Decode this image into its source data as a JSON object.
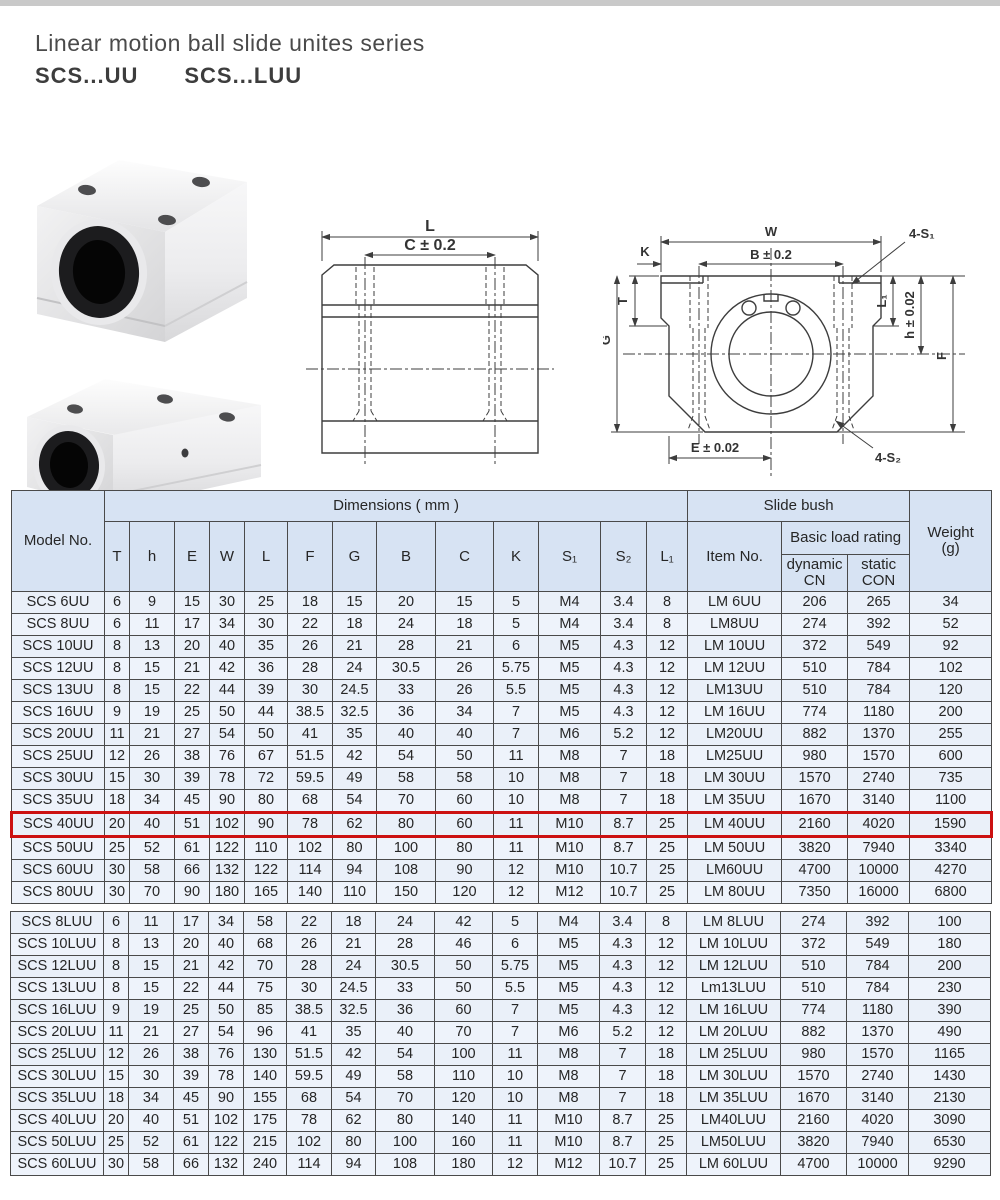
{
  "header": {
    "title": "Linear motion ball  slide unites series",
    "subtitle_left": "SCS...UU",
    "subtitle_right": "SCS...LUU"
  },
  "colors": {
    "table_cell_bg": "#eaf0f9",
    "table_header_bg": "#d7e3f3",
    "grid_line": "#4a4a4a",
    "highlight": "#cc1111"
  },
  "drawings": {
    "side_view": {
      "labels": {
        "L": "L",
        "C": "C ± 0.2"
      }
    },
    "front_view": {
      "labels": {
        "W": "W",
        "B": "B ± 0.2",
        "K": "K",
        "T": "T",
        "G": "G",
        "L1": "L₁",
        "h": "h ± 0.02",
        "F": "F",
        "E": "E ± 0.02",
        "S1": "4-S₁",
        "S2": "4-S₂"
      }
    }
  },
  "table": {
    "header": {
      "model_no": "Model No.",
      "dimensions": "Dimensions ( mm )",
      "slide_bush": "Slide bush",
      "weight": "Weight\n(g)",
      "dim_cols": [
        "T",
        "h",
        "E",
        "W",
        "L",
        "F",
        "G",
        "B",
        "C",
        "K",
        "S₁",
        "S₂",
        "L₁"
      ],
      "item_no": "Item No.",
      "basic_load": "Basic load rating",
      "dynamic": "dynamic\nCN",
      "static": "static\nCON"
    },
    "sections": [
      {
        "name": "UU",
        "rows": [
          {
            "model": "SCS 6UU",
            "dims": [
              "6",
              "9",
              "15",
              "30",
              "25",
              "18",
              "15",
              "20",
              "15",
              "5",
              "M4",
              "3.4",
              "8"
            ],
            "item": "LM 6UU",
            "dynamic": "206",
            "static": "265",
            "weight": "34",
            "highlight": false
          },
          {
            "model": "SCS 8UU",
            "dims": [
              "6",
              "11",
              "17",
              "34",
              "30",
              "22",
              "18",
              "24",
              "18",
              "5",
              "M4",
              "3.4",
              "8"
            ],
            "item": "LM8UU",
            "dynamic": "274",
            "static": "392",
            "weight": "52",
            "highlight": false
          },
          {
            "model": "SCS 10UU",
            "dims": [
              "8",
              "13",
              "20",
              "40",
              "35",
              "26",
              "21",
              "28",
              "21",
              "6",
              "M5",
              "4.3",
              "12"
            ],
            "item": "LM 10UU",
            "dynamic": "372",
            "static": "549",
            "weight": "92",
            "highlight": false
          },
          {
            "model": "SCS 12UU",
            "dims": [
              "8",
              "15",
              "21",
              "42",
              "36",
              "28",
              "24",
              "30.5",
              "26",
              "5.75",
              "M5",
              "4.3",
              "12"
            ],
            "item": "LM 12UU",
            "dynamic": "510",
            "static": "784",
            "weight": "102",
            "highlight": false
          },
          {
            "model": "SCS 13UU",
            "dims": [
              "8",
              "15",
              "22",
              "44",
              "39",
              "30",
              "24.5",
              "33",
              "26",
              "5.5",
              "M5",
              "4.3",
              "12"
            ],
            "item": "LM13UU",
            "dynamic": "510",
            "static": "784",
            "weight": "120",
            "highlight": false
          },
          {
            "model": "SCS 16UU",
            "dims": [
              "9",
              "19",
              "25",
              "50",
              "44",
              "38.5",
              "32.5",
              "36",
              "34",
              "7",
              "M5",
              "4.3",
              "12"
            ],
            "item": "LM 16UU",
            "dynamic": "774",
            "static": "1180",
            "weight": "200",
            "highlight": false
          },
          {
            "model": "SCS 20UU",
            "dims": [
              "11",
              "21",
              "27",
              "54",
              "50",
              "41",
              "35",
              "40",
              "40",
              "7",
              "M6",
              "5.2",
              "12"
            ],
            "item": "LM20UU",
            "dynamic": "882",
            "static": "1370",
            "weight": "255",
            "highlight": false
          },
          {
            "model": "SCS 25UU",
            "dims": [
              "12",
              "26",
              "38",
              "76",
              "67",
              "51.5",
              "42",
              "54",
              "50",
              "11",
              "M8",
              "7",
              "18"
            ],
            "item": "LM25UU",
            "dynamic": "980",
            "static": "1570",
            "weight": "600",
            "highlight": false
          },
          {
            "model": "SCS 30UU",
            "dims": [
              "15",
              "30",
              "39",
              "78",
              "72",
              "59.5",
              "49",
              "58",
              "58",
              "10",
              "M8",
              "7",
              "18"
            ],
            "item": "LM 30UU",
            "dynamic": "1570",
            "static": "2740",
            "weight": "735",
            "highlight": false
          },
          {
            "model": "SCS 35UU",
            "dims": [
              "18",
              "34",
              "45",
              "90",
              "80",
              "68",
              "54",
              "70",
              "60",
              "10",
              "M8",
              "7",
              "18"
            ],
            "item": "LM 35UU",
            "dynamic": "1670",
            "static": "3140",
            "weight": "1100",
            "highlight": false
          },
          {
            "model": "SCS 40UU",
            "dims": [
              "20",
              "40",
              "51",
              "102",
              "90",
              "78",
              "62",
              "80",
              "60",
              "11",
              "M10",
              "8.7",
              "25"
            ],
            "item": "LM 40UU",
            "dynamic": "2160",
            "static": "4020",
            "weight": "1590",
            "highlight": true
          },
          {
            "model": "SCS 50UU",
            "dims": [
              "25",
              "52",
              "61",
              "122",
              "110",
              "102",
              "80",
              "100",
              "80",
              "11",
              "M10",
              "8.7",
              "25"
            ],
            "item": "LM 50UU",
            "dynamic": "3820",
            "static": "7940",
            "weight": "3340",
            "highlight": false
          },
          {
            "model": "SCS 60UU",
            "dims": [
              "30",
              "58",
              "66",
              "132",
              "122",
              "114",
              "94",
              "108",
              "90",
              "12",
              "M10",
              "10.7",
              "25"
            ],
            "item": "LM60UU",
            "dynamic": "4700",
            "static": "10000",
            "weight": "4270",
            "highlight": false
          },
          {
            "model": "SCS 80UU",
            "dims": [
              "30",
              "70",
              "90",
              "180",
              "165",
              "140",
              "110",
              "150",
              "120",
              "12",
              "M12",
              "10.7",
              "25"
            ],
            "item": "LM 80UU",
            "dynamic": "7350",
            "static": "16000",
            "weight": "6800",
            "highlight": false
          }
        ]
      },
      {
        "name": "LUU",
        "rows": [
          {
            "model": "SCS 8LUU",
            "dims": [
              "6",
              "11",
              "17",
              "34",
              "58",
              "22",
              "18",
              "24",
              "42",
              "5",
              "M4",
              "3.4",
              "8"
            ],
            "item": "LM 8LUU",
            "dynamic": "274",
            "static": "392",
            "weight": "100",
            "highlight": false
          },
          {
            "model": "SCS 10LUU",
            "dims": [
              "8",
              "13",
              "20",
              "40",
              "68",
              "26",
              "21",
              "28",
              "46",
              "6",
              "M5",
              "4.3",
              "12"
            ],
            "item": "LM 10LUU",
            "dynamic": "372",
            "static": "549",
            "weight": "180",
            "highlight": false
          },
          {
            "model": "SCS 12LUU",
            "dims": [
              "8",
              "15",
              "21",
              "42",
              "70",
              "28",
              "24",
              "30.5",
              "50",
              "5.75",
              "M5",
              "4.3",
              "12"
            ],
            "item": "LM 12LUU",
            "dynamic": "510",
            "static": "784",
            "weight": "200",
            "highlight": false
          },
          {
            "model": "SCS 13LUU",
            "dims": [
              "8",
              "15",
              "22",
              "44",
              "75",
              "30",
              "24.5",
              "33",
              "50",
              "5.5",
              "M5",
              "4.3",
              "12"
            ],
            "item": "Lm13LUU",
            "dynamic": "510",
            "static": "784",
            "weight": "230",
            "highlight": false
          },
          {
            "model": "SCS 16LUU",
            "dims": [
              "9",
              "19",
              "25",
              "50",
              "85",
              "38.5",
              "32.5",
              "36",
              "60",
              "7",
              "M5",
              "4.3",
              "12"
            ],
            "item": "LM 16LUU",
            "dynamic": "774",
            "static": "1180",
            "weight": "390",
            "highlight": false
          },
          {
            "model": "SCS 20LUU",
            "dims": [
              "11",
              "21",
              "27",
              "54",
              "96",
              "41",
              "35",
              "40",
              "70",
              "7",
              "M6",
              "5.2",
              "12"
            ],
            "item": "LM 20LUU",
            "dynamic": "882",
            "static": "1370",
            "weight": "490",
            "highlight": false
          },
          {
            "model": "SCS 25LUU",
            "dims": [
              "12",
              "26",
              "38",
              "76",
              "130",
              "51.5",
              "42",
              "54",
              "100",
              "11",
              "M8",
              "7",
              "18"
            ],
            "item": "LM 25LUU",
            "dynamic": "980",
            "static": "1570",
            "weight": "1165",
            "highlight": false
          },
          {
            "model": "SCS 30LUU",
            "dims": [
              "15",
              "30",
              "39",
              "78",
              "140",
              "59.5",
              "49",
              "58",
              "110",
              "10",
              "M8",
              "7",
              "18"
            ],
            "item": "LM 30LUU",
            "dynamic": "1570",
            "static": "2740",
            "weight": "1430",
            "highlight": false
          },
          {
            "model": "SCS 35LUU",
            "dims": [
              "18",
              "34",
              "45",
              "90",
              "155",
              "68",
              "54",
              "70",
              "120",
              "10",
              "M8",
              "7",
              "18"
            ],
            "item": "LM 35LUU",
            "dynamic": "1670",
            "static": "3140",
            "weight": "2130",
            "highlight": false
          },
          {
            "model": "SCS 40LUU",
            "dims": [
              "20",
              "40",
              "51",
              "102",
              "175",
              "78",
              "62",
              "80",
              "140",
              "11",
              "M10",
              "8.7",
              "25"
            ],
            "item": "LM40LUU",
            "dynamic": "2160",
            "static": "4020",
            "weight": "3090",
            "highlight": false
          },
          {
            "model": "SCS 50LUU",
            "dims": [
              "25",
              "52",
              "61",
              "122",
              "215",
              "102",
              "80",
              "100",
              "160",
              "11",
              "M10",
              "8.7",
              "25"
            ],
            "item": "LM50LUU",
            "dynamic": "3820",
            "static": "7940",
            "weight": "6530",
            "highlight": false
          },
          {
            "model": "SCS 60LUU",
            "dims": [
              "30",
              "58",
              "66",
              "132",
              "240",
              "114",
              "94",
              "108",
              "180",
              "12",
              "M12",
              "10.7",
              "25"
            ],
            "item": "LM 60LUU",
            "dynamic": "4700",
            "static": "10000",
            "weight": "9290",
            "highlight": false
          }
        ]
      }
    ]
  }
}
